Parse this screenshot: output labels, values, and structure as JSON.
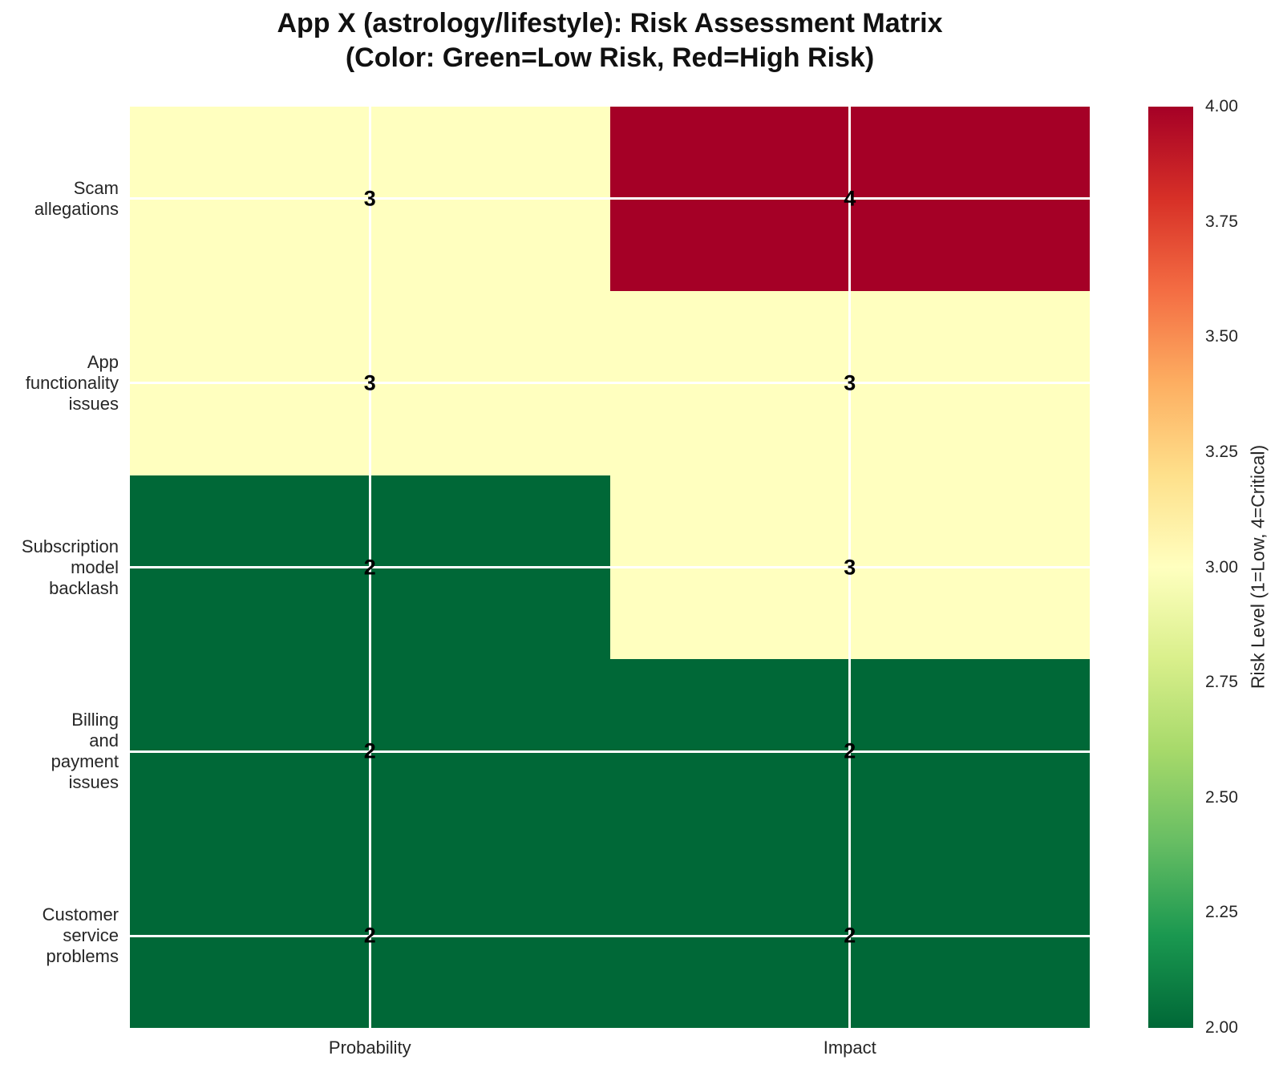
{
  "title": {
    "line1": "App X (astrology/lifestyle): Risk Assessment Matrix",
    "line2": "(Color: Green=Low Risk, Red=High Risk)"
  },
  "chart_data": {
    "type": "heatmap",
    "columns": [
      "Probability",
      "Impact"
    ],
    "rows": [
      "Scam allegations",
      "App functionality issues",
      "Subscription model backlash",
      "Billing and payment issues",
      "Customer service problems"
    ],
    "row_labels_wrapped": [
      [
        "Scam",
        "allegations"
      ],
      [
        "App",
        "functionality",
        "issues"
      ],
      [
        "Subscription",
        "model",
        "backlash"
      ],
      [
        "Billing",
        "and",
        "payment",
        "issues"
      ],
      [
        "Customer",
        "service",
        "problems"
      ]
    ],
    "values": [
      [
        3,
        4
      ],
      [
        3,
        3
      ],
      [
        2,
        3
      ],
      [
        2,
        2
      ],
      [
        2,
        2
      ]
    ],
    "vmin": 2,
    "vmax": 4,
    "grid": true,
    "annotations_shown": true,
    "cell_colors": {
      "2": "#006837",
      "3": "#FFFFBF",
      "4": "#A50026"
    },
    "colorbar": {
      "ticks": [
        "4.00",
        "3.75",
        "3.50",
        "3.25",
        "3.00",
        "2.75",
        "2.50",
        "2.25",
        "2.00"
      ],
      "label": "Risk Level (1=Low, 4=Critical)",
      "gradient_bottom_to_top": [
        "#006837",
        "#1A9850",
        "#66BD63",
        "#A6D96A",
        "#D9EF8B",
        "#FFFFBF",
        "#FEE08B",
        "#FDAE61",
        "#F46D43",
        "#D73027",
        "#A50026"
      ]
    }
  }
}
